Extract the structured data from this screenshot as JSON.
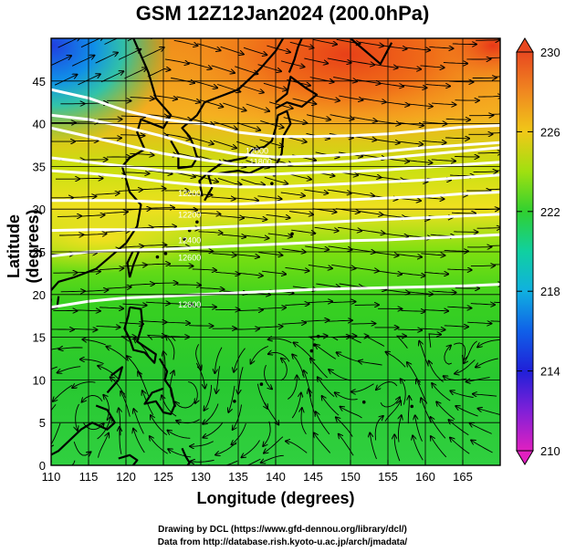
{
  "title": "GSM 12Z12Jan2024 (200.0hPa)",
  "axes": {
    "xlabel": "Longitude (degrees)",
    "ylabel": "Latitude  (degrees)",
    "xlim": [
      110,
      170
    ],
    "ylim": [
      0,
      50
    ],
    "xticks": [
      110,
      115,
      120,
      125,
      130,
      135,
      140,
      145,
      150,
      155,
      160,
      165
    ],
    "yticks": [
      0,
      5,
      10,
      15,
      20,
      25,
      30,
      35,
      40,
      45
    ]
  },
  "colorbar": {
    "min": 210,
    "max": 230,
    "ticks": [
      210,
      214,
      218,
      222,
      226,
      230
    ]
  },
  "contour_labels": [
    {
      "text": "12000",
      "lon": 137.5,
      "lat": 36.5
    },
    {
      "text": "11800",
      "lon": 138.0,
      "lat": 35.2
    },
    {
      "text": "12200",
      "lon": 128.5,
      "lat": 31.5
    },
    {
      "text": "12200",
      "lon": 128.5,
      "lat": 29.0
    },
    {
      "text": "12400",
      "lon": 128.5,
      "lat": 26.0
    },
    {
      "text": "12600",
      "lon": 128.5,
      "lat": 24.0
    },
    {
      "text": "12600",
      "lon": 128.5,
      "lat": 18.5
    }
  ],
  "credits": {
    "line1": "Drawing by DCL (https://www.gfd-dennou.org/library/dcl/)",
    "line2": "Data from http://database.rish.kyoto-u.ac.jp/arch/jmadata/"
  }
}
